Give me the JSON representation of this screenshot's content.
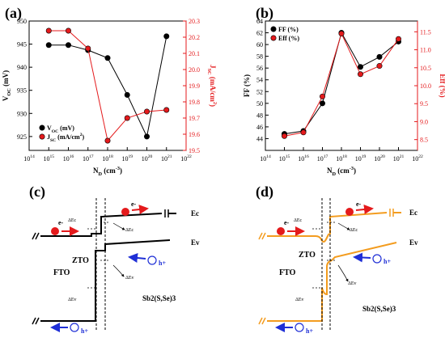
{
  "panels": {
    "a": "(a)",
    "b": "(b)",
    "c": "(c)",
    "d": "(d)"
  },
  "colors": {
    "black": "#000000",
    "red": "#e41a1c",
    "blue": "#1f2fd6",
    "orange": "#f39c1f"
  },
  "chart_data": [
    {
      "type": "line",
      "panel": "(a)",
      "x": [
        1000000000000000.0,
        1e+16,
        1e+17,
        1e+18,
        1e+19,
        1e+20,
        1e+21
      ],
      "x_tick_labels": [
        "10^14",
        "10^15",
        "10^16",
        "10^17",
        "10^18",
        "10^19",
        "10^20",
        "10^21",
        "10^22"
      ],
      "xlim": [
        100000000000000.0,
        1e+22
      ],
      "xscale": "log",
      "xlabel": "N_D (cm^-3)",
      "ylabel_left": "V_OC (mV)",
      "ylabel_right": "J_SC (mA/cm^2)",
      "ylim_left": [
        922,
        950
      ],
      "yticks_left": [
        925,
        930,
        935,
        940,
        945,
        950
      ],
      "ylim_right": [
        19.5,
        20.3
      ],
      "yticks_right": [
        19.5,
        19.6,
        19.7,
        19.8,
        19.9,
        20.0,
        20.1,
        20.2,
        20.3
      ],
      "series": [
        {
          "name": "V_OC (mV)",
          "axis": "left",
          "color": "#000000",
          "values": [
            944.8,
            944.8,
            943.7,
            942.0,
            934.0,
            925.0,
            946.7
          ]
        },
        {
          "name": "J_SC (mA/cm^2)",
          "axis": "right",
          "color": "#e41a1c",
          "values": [
            20.24,
            20.24,
            20.13,
            19.56,
            19.7,
            19.74,
            19.75
          ]
        }
      ],
      "legend": "bottom-left"
    },
    {
      "type": "line",
      "panel": "(b)",
      "x": [
        1000000000000000.0,
        1e+16,
        1e+17,
        1e+18,
        1e+19,
        1e+20,
        1e+21
      ],
      "x_tick_labels": [
        "10^14",
        "10^15",
        "10^16",
        "10^17",
        "10^18",
        "10^19",
        "10^20",
        "10^21",
        "10^22"
      ],
      "xlim": [
        100000000000000.0,
        1e+22
      ],
      "xscale": "log",
      "xlabel": "N_D (cm^-3)",
      "ylabel_left": "FF (%)",
      "ylabel_right": "Eff (%)",
      "ylim_left": [
        42,
        64
      ],
      "yticks_left": [
        44,
        46,
        48,
        50,
        52,
        54,
        56,
        58,
        60,
        62,
        64
      ],
      "ylim_right": [
        8.2,
        11.8
      ],
      "yticks_right": [
        8.5,
        9.0,
        9.5,
        10.0,
        10.5,
        11.0,
        11.5
      ],
      "series": [
        {
          "name": "FF (%)",
          "axis": "left",
          "color": "#000000",
          "values": [
            44.8,
            45.3,
            50.0,
            62.0,
            56.2,
            57.9,
            60.5
          ]
        },
        {
          "name": "Eff (%)",
          "axis": "right",
          "color": "#e41a1c",
          "values": [
            8.6,
            8.7,
            9.7,
            11.45,
            10.32,
            10.55,
            11.3
          ]
        }
      ],
      "legend": "top-left"
    }
  ],
  "diagrams": {
    "c": {
      "labels": {
        "ec": "Ec",
        "ev": "Ev",
        "fto": "FTO",
        "zto": "ZTO",
        "absorber": "Sb2(S,Se)3",
        "dEc_left": "ΔEc",
        "dEc_right": "ΔEc",
        "dEv_mid": "ΔEv",
        "dEv_left": "ΔEv",
        "electron_left": "e-",
        "electron_right": "e-",
        "hole_right": "h+",
        "hole_left": "h+"
      }
    },
    "d": {
      "labels": {
        "ec": "Ec",
        "ev": "Ev",
        "fto": "FTO",
        "zto": "ZTO",
        "absorber": "Sb2(S,Se)3",
        "dEc_left": "ΔEc",
        "dEc_right": "ΔEc",
        "dEv_mid": "ΔEv",
        "dEv_left": "ΔEv",
        "electron_left": "e-",
        "electron_right": "e-",
        "hole_right": "h+",
        "hole_left": "h+"
      }
    }
  }
}
